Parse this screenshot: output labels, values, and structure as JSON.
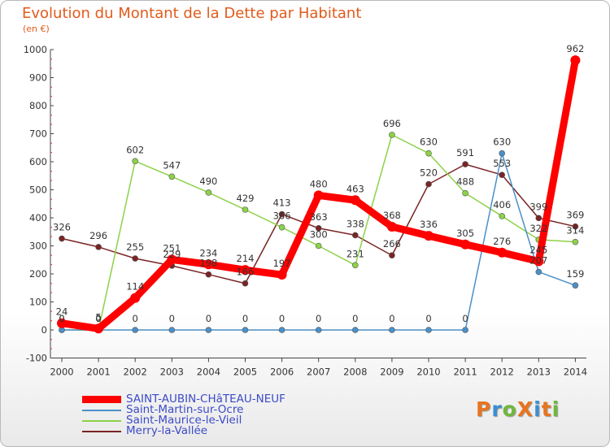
{
  "title": "Evolution du Montant de la Dette par Habitant",
  "unit_label": "(en €)",
  "chart_data": {
    "type": "line",
    "title": "Evolution du Montant de la Dette par Habitant",
    "ylabel": "(en €)",
    "xlabel": "",
    "x": [
      "2000",
      "2001",
      "2002",
      "2003",
      "2004",
      "2005",
      "2006",
      "2007",
      "2008",
      "2009",
      "2010",
      "2011",
      "2012",
      "2013",
      "2014"
    ],
    "ylim": [
      -100,
      1000
    ],
    "yticks": [
      -100,
      0,
      100,
      200,
      300,
      400,
      500,
      600,
      700,
      800,
      900,
      1000
    ],
    "grid": false,
    "legend_position": "bottom-left",
    "series": [
      {
        "name": "SAINT-AUBIN-CHâTEAU-NEUF",
        "color": "#ff0000",
        "values": [
          24,
          5,
          114,
          251,
          234,
          214,
          197,
          480,
          463,
          368,
          336,
          305,
          276,
          245,
          962
        ],
        "labels": [
          "24",
          "5",
          "114",
          "251",
          "234",
          "214",
          "197",
          "480",
          "463",
          "368",
          "336",
          "305",
          "276",
          "245",
          "962"
        ]
      },
      {
        "name": "Saint-Martin-sur-Ocre",
        "color": "#4b8fc7",
        "values": [
          0,
          0,
          0,
          0,
          0,
          0,
          0,
          0,
          0,
          0,
          0,
          0,
          630,
          207,
          159
        ],
        "labels": [
          "0",
          "0",
          "0",
          "0",
          "0",
          "0",
          "0",
          "0",
          "0",
          "0",
          "0",
          "0",
          "630",
          "207",
          "159"
        ]
      },
      {
        "name": "Saint-Maurice-le-Vieil",
        "color": "#8cd248",
        "values": [
          0,
          0,
          602,
          547,
          490,
          429,
          366,
          300,
          231,
          696,
          630,
          488,
          406,
          322,
          314
        ],
        "labels": [
          "0",
          "0",
          "602",
          "547",
          "490",
          "429",
          "366",
          "300",
          "231",
          "696",
          "630",
          "488",
          "406",
          "322",
          "314"
        ]
      },
      {
        "name": "Merry-la-Vallée",
        "color": "#7a2424",
        "values": [
          326,
          296,
          255,
          229,
          198,
          166,
          413,
          363,
          338,
          266,
          520,
          591,
          553,
          399,
          369
        ],
        "labels": [
          "326",
          "296",
          "255",
          "229",
          "198",
          "166",
          "413",
          "363",
          "338",
          "266",
          "520",
          "591",
          "553",
          "399",
          "369"
        ]
      }
    ]
  },
  "logo": {
    "text": "ProXiti",
    "colors": [
      "#e8741e",
      "#3a8fd0",
      "#6fb83b",
      "#e8741e",
      "#3a8fd0",
      "#e8741e",
      "#6fb83b"
    ]
  }
}
